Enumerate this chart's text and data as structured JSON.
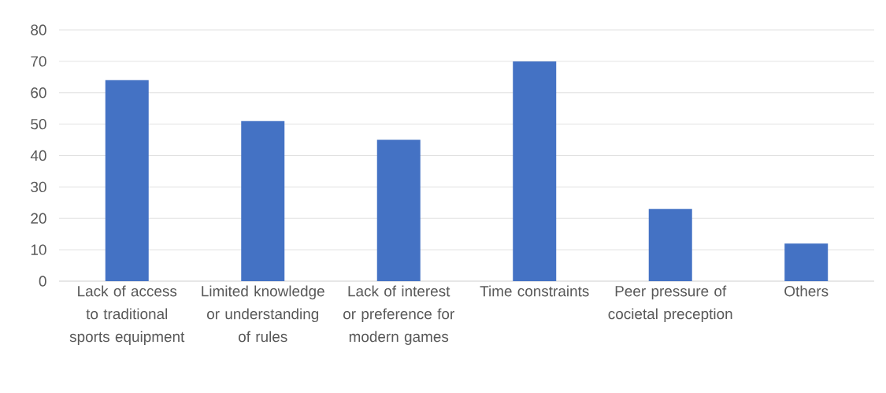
{
  "chart_data": {
    "type": "bar",
    "categories": [
      "Lack of access to traditional sports equipment",
      "Limited knowledge or understanding of rules",
      "Lack of interest or preference for modern games",
      "Time constraints",
      "Peer pressure of cocietal preception",
      "Others"
    ],
    "values": [
      64,
      51,
      45,
      70,
      23,
      12
    ],
    "color": "#4472c4",
    "ylim": [
      0,
      80
    ],
    "yticks": [
      0,
      10,
      20,
      30,
      40,
      50,
      60,
      70,
      80
    ],
    "grid": "y"
  }
}
